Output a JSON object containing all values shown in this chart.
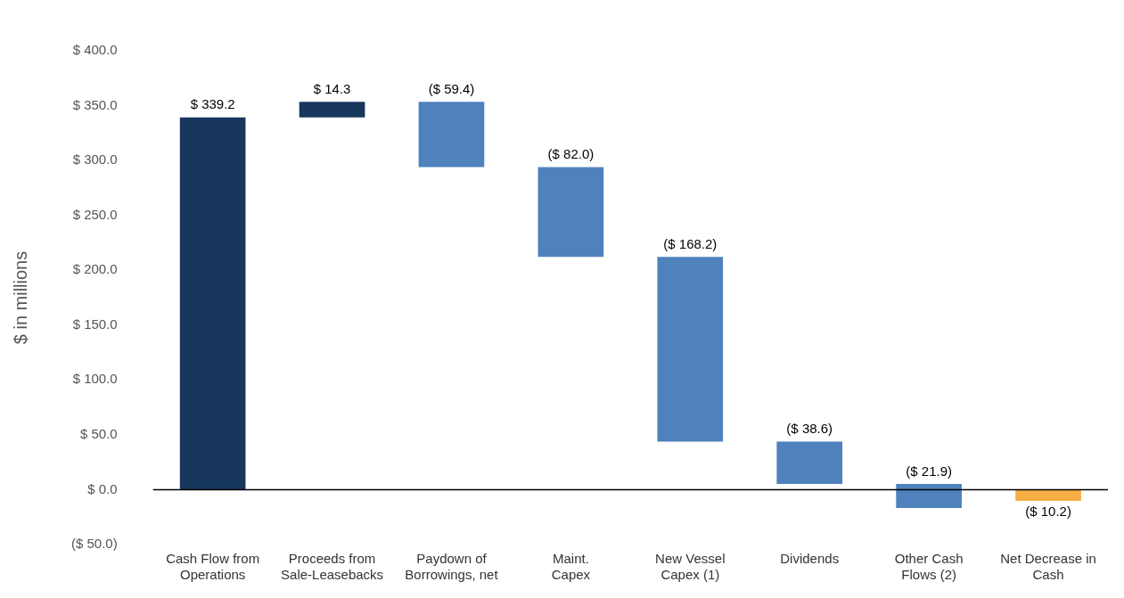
{
  "chart_data": {
    "type": "bar",
    "ylabel": "$ in millions",
    "categories": [
      "Cash Flow from\nOperations",
      "Proceeds from\nSale-Leasebacks",
      "Paydown of\nBorrowings, net",
      "Maint.\nCapex",
      "New Vessel\nCapex (1)",
      "Dividends",
      "Other Cash\nFlows (2)",
      "Net Decrease in\nCash"
    ],
    "values": [
      339.2,
      14.3,
      -59.4,
      -82.0,
      -168.2,
      -38.6,
      -21.9,
      -10.2
    ],
    "base": [
      0,
      339.2,
      353.5,
      294.1,
      212.1,
      43.9,
      5.3,
      0
    ],
    "colors": [
      "#17375e",
      "#17375e",
      "#4f81bd",
      "#4f81bd",
      "#4f81bd",
      "#4f81bd",
      "#4f81bd",
      "#f6ae45"
    ],
    "value_labels": [
      "$ 339.2",
      "$ 14.3",
      "($ 59.4)",
      "($ 82.0)",
      "($ 168.2)",
      "($ 38.6)",
      "($ 21.9)",
      "($ 10.2)"
    ],
    "ylim": [
      -50,
      400
    ],
    "yticks": [
      {
        "value": -50,
        "label": "($ 50.0)"
      },
      {
        "value": 0,
        "label": "$ 0.0"
      },
      {
        "value": 50,
        "label": "$ 50.0"
      },
      {
        "value": 100,
        "label": "$ 100.0"
      },
      {
        "value": 150,
        "label": "$ 150.0"
      },
      {
        "value": 200,
        "label": "$ 200.0"
      },
      {
        "value": 250,
        "label": "$ 250.0"
      },
      {
        "value": 300,
        "label": "$ 300.0"
      },
      {
        "value": 350,
        "label": "$ 350.0"
      },
      {
        "value": 400,
        "label": "$ 400.0"
      }
    ],
    "ref_lines": [
      {
        "axis": "y",
        "value": 0,
        "color": "#000000"
      }
    ],
    "grid": false,
    "legend": false
  }
}
